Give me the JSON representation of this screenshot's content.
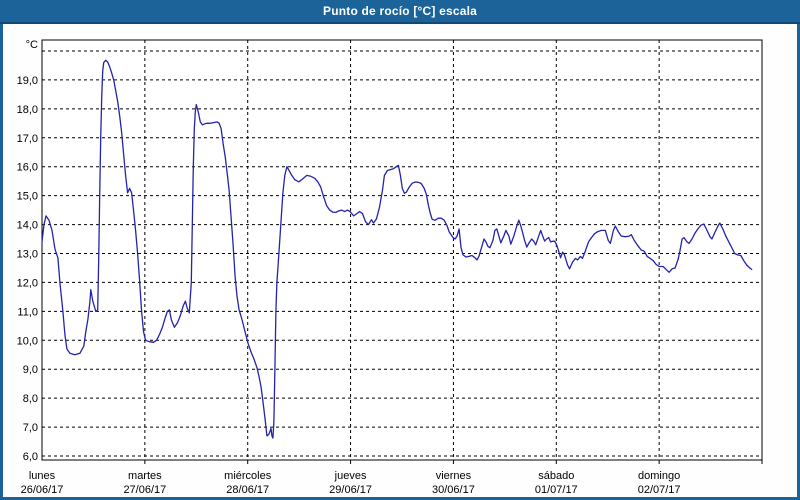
{
  "window": {
    "title": "Punto de rocío [°C] escala"
  },
  "colors": {
    "titlebar": "#1C6399",
    "titlebar_edge": "#0E4A77",
    "plot_background": "#FFFFFF",
    "grid": "#000000",
    "axis": "#000000",
    "text": "#000000",
    "line": "#2323AC"
  },
  "chart_data": {
    "type": "line",
    "title": "Punto de rocío [°C] escala",
    "ylabel": "°C",
    "xlabel": "",
    "ylim": [
      6,
      20
    ],
    "grid": "dashed",
    "legend": "none",
    "y_unit_label": "°C",
    "y_ticks": [
      {
        "v": 19,
        "label": "19,0"
      },
      {
        "v": 18,
        "label": "18,0"
      },
      {
        "v": 17,
        "label": "17,0"
      },
      {
        "v": 16,
        "label": "16,0"
      },
      {
        "v": 15,
        "label": "15,0"
      },
      {
        "v": 14,
        "label": "14,0"
      },
      {
        "v": 13,
        "label": "13,0"
      },
      {
        "v": 12,
        "label": "12,0"
      },
      {
        "v": 11,
        "label": "11,0"
      },
      {
        "v": 10,
        "label": "10,0"
      },
      {
        "v": 9,
        "label": "9,0"
      },
      {
        "v": 8,
        "label": "8,0"
      },
      {
        "v": 7,
        "label": "7,0"
      },
      {
        "v": 6,
        "label": "6,0"
      }
    ],
    "top_gridline_value": 20,
    "x_days": [
      {
        "weekday": "lunes",
        "date": "26/06/17"
      },
      {
        "weekday": "martes",
        "date": "27/06/17"
      },
      {
        "weekday": "miércoles",
        "date": "28/06/17"
      },
      {
        "weekday": "jueves",
        "date": "29/06/17"
      },
      {
        "weekday": "viernes",
        "date": "30/06/17"
      },
      {
        "weekday": "sábado",
        "date": "01/07/17"
      },
      {
        "weekday": "domingo",
        "date": "02/07/17"
      }
    ],
    "x_range_days": [
      0,
      7
    ],
    "series": [
      {
        "name": "Punto de rocío",
        "color": "#2323AC",
        "points": [
          [
            0.0,
            13.4
          ],
          [
            0.019,
            14.0
          ],
          [
            0.039,
            14.3
          ],
          [
            0.068,
            14.15
          ],
          [
            0.097,
            13.8
          ],
          [
            0.126,
            13.15
          ],
          [
            0.155,
            12.85
          ],
          [
            0.174,
            12.0
          ],
          [
            0.203,
            11.0
          ],
          [
            0.223,
            10.2
          ],
          [
            0.242,
            9.7
          ],
          [
            0.271,
            9.55
          ],
          [
            0.319,
            9.5
          ],
          [
            0.368,
            9.55
          ],
          [
            0.406,
            9.8
          ],
          [
            0.426,
            10.3
          ],
          [
            0.445,
            10.7
          ],
          [
            0.465,
            11.3
          ],
          [
            0.474,
            11.75
          ],
          [
            0.494,
            11.35
          ],
          [
            0.523,
            11.0
          ],
          [
            0.542,
            11.05
          ],
          [
            0.552,
            13.0
          ],
          [
            0.561,
            15.0
          ],
          [
            0.571,
            17.0
          ],
          [
            0.581,
            18.5
          ],
          [
            0.59,
            19.3
          ],
          [
            0.6,
            19.6
          ],
          [
            0.619,
            19.68
          ],
          [
            0.639,
            19.62
          ],
          [
            0.658,
            19.45
          ],
          [
            0.677,
            19.25
          ],
          [
            0.697,
            19.0
          ],
          [
            0.716,
            18.65
          ],
          [
            0.736,
            18.25
          ],
          [
            0.755,
            17.75
          ],
          [
            0.774,
            17.2
          ],
          [
            0.794,
            16.4
          ],
          [
            0.813,
            15.7
          ],
          [
            0.832,
            15.1
          ],
          [
            0.852,
            15.25
          ],
          [
            0.871,
            15.1
          ],
          [
            0.89,
            14.5
          ],
          [
            0.91,
            13.8
          ],
          [
            0.929,
            13.0
          ],
          [
            0.948,
            12.1
          ],
          [
            0.968,
            11.0
          ],
          [
            0.987,
            10.3
          ],
          [
            1.007,
            10.0
          ],
          [
            1.045,
            9.95
          ],
          [
            1.084,
            9.93
          ],
          [
            1.113,
            10.0
          ],
          [
            1.142,
            10.2
          ],
          [
            1.171,
            10.45
          ],
          [
            1.2,
            10.8
          ],
          [
            1.219,
            11.0
          ],
          [
            1.239,
            11.05
          ],
          [
            1.258,
            10.7
          ],
          [
            1.287,
            10.45
          ],
          [
            1.316,
            10.6
          ],
          [
            1.345,
            10.85
          ],
          [
            1.374,
            11.2
          ],
          [
            1.394,
            11.35
          ],
          [
            1.413,
            11.1
          ],
          [
            1.432,
            10.95
          ],
          [
            1.452,
            12.0
          ],
          [
            1.461,
            14.0
          ],
          [
            1.471,
            16.0
          ],
          [
            1.481,
            17.3
          ],
          [
            1.49,
            17.9
          ],
          [
            1.5,
            18.15
          ],
          [
            1.519,
            17.9
          ],
          [
            1.539,
            17.55
          ],
          [
            1.558,
            17.45
          ],
          [
            1.597,
            17.5
          ],
          [
            1.636,
            17.5
          ],
          [
            1.674,
            17.53
          ],
          [
            1.703,
            17.55
          ],
          [
            1.723,
            17.5
          ],
          [
            1.742,
            17.3
          ],
          [
            1.761,
            16.8
          ],
          [
            1.781,
            16.35
          ],
          [
            1.8,
            15.8
          ],
          [
            1.819,
            15.2
          ],
          [
            1.839,
            14.2
          ],
          [
            1.858,
            13.3
          ],
          [
            1.877,
            12.2
          ],
          [
            1.897,
            11.5
          ],
          [
            1.916,
            11.05
          ],
          [
            1.945,
            10.7
          ],
          [
            1.974,
            10.3
          ],
          [
            2.003,
            9.9
          ],
          [
            2.032,
            9.6
          ],
          [
            2.061,
            9.35
          ],
          [
            2.09,
            9.05
          ],
          [
            2.11,
            8.75
          ],
          [
            2.129,
            8.4
          ],
          [
            2.148,
            7.9
          ],
          [
            2.168,
            7.3
          ],
          [
            2.187,
            6.7
          ],
          [
            2.206,
            6.75
          ],
          [
            2.226,
            6.95
          ],
          [
            2.235,
            6.7
          ],
          [
            2.245,
            6.62
          ],
          [
            2.255,
            7.2
          ],
          [
            2.264,
            9.0
          ],
          [
            2.274,
            11.0
          ],
          [
            2.284,
            12.0
          ],
          [
            2.303,
            13.0
          ],
          [
            2.322,
            14.0
          ],
          [
            2.342,
            15.1
          ],
          [
            2.361,
            15.7
          ],
          [
            2.381,
            16.0
          ],
          [
            2.4,
            15.88
          ],
          [
            2.429,
            15.7
          ],
          [
            2.458,
            15.55
          ],
          [
            2.497,
            15.48
          ],
          [
            2.535,
            15.58
          ],
          [
            2.574,
            15.7
          ],
          [
            2.613,
            15.67
          ],
          [
            2.652,
            15.6
          ],
          [
            2.681,
            15.48
          ],
          [
            2.71,
            15.3
          ],
          [
            2.739,
            14.95
          ],
          [
            2.768,
            14.65
          ],
          [
            2.797,
            14.5
          ],
          [
            2.826,
            14.43
          ],
          [
            2.855,
            14.42
          ],
          [
            2.884,
            14.47
          ],
          [
            2.913,
            14.5
          ],
          [
            2.942,
            14.45
          ],
          [
            2.971,
            14.5
          ],
          [
            3.0,
            14.43
          ],
          [
            3.029,
            14.3
          ],
          [
            3.058,
            14.37
          ],
          [
            3.087,
            14.45
          ],
          [
            3.116,
            14.38
          ],
          [
            3.145,
            14.1
          ],
          [
            3.174,
            14.0
          ],
          [
            3.203,
            14.17
          ],
          [
            3.223,
            14.05
          ],
          [
            3.252,
            14.2
          ],
          [
            3.281,
            14.6
          ],
          [
            3.31,
            15.2
          ],
          [
            3.329,
            15.7
          ],
          [
            3.358,
            15.87
          ],
          [
            3.387,
            15.9
          ],
          [
            3.416,
            15.93
          ],
          [
            3.445,
            16.0
          ],
          [
            3.465,
            16.05
          ],
          [
            3.484,
            15.7
          ],
          [
            3.503,
            15.25
          ],
          [
            3.523,
            15.08
          ],
          [
            3.542,
            15.12
          ],
          [
            3.571,
            15.3
          ],
          [
            3.6,
            15.43
          ],
          [
            3.629,
            15.47
          ],
          [
            3.658,
            15.46
          ],
          [
            3.687,
            15.42
          ],
          [
            3.716,
            15.25
          ],
          [
            3.736,
            15.05
          ],
          [
            3.755,
            14.7
          ],
          [
            3.774,
            14.4
          ],
          [
            3.794,
            14.18
          ],
          [
            3.823,
            14.15
          ],
          [
            3.852,
            14.22
          ],
          [
            3.881,
            14.22
          ],
          [
            3.91,
            14.15
          ],
          [
            3.939,
            13.95
          ],
          [
            3.958,
            13.75
          ],
          [
            3.977,
            13.65
          ],
          [
            3.997,
            13.55
          ],
          [
            4.016,
            13.5
          ],
          [
            4.035,
            13.6
          ],
          [
            4.055,
            13.85
          ],
          [
            4.074,
            13.2
          ],
          [
            4.093,
            12.95
          ],
          [
            4.122,
            12.88
          ],
          [
            4.151,
            12.9
          ],
          [
            4.181,
            12.93
          ],
          [
            4.21,
            12.85
          ],
          [
            4.229,
            12.78
          ],
          [
            4.248,
            12.9
          ],
          [
            4.277,
            13.25
          ],
          [
            4.297,
            13.5
          ],
          [
            4.316,
            13.4
          ],
          [
            4.335,
            13.25
          ],
          [
            4.355,
            13.2
          ],
          [
            4.384,
            13.45
          ],
          [
            4.403,
            13.8
          ],
          [
            4.422,
            13.85
          ],
          [
            4.442,
            13.6
          ],
          [
            4.461,
            13.37
          ],
          [
            4.49,
            13.6
          ],
          [
            4.51,
            13.8
          ],
          [
            4.539,
            13.6
          ],
          [
            4.558,
            13.32
          ],
          [
            4.587,
            13.6
          ],
          [
            4.616,
            13.95
          ],
          [
            4.636,
            14.15
          ],
          [
            4.655,
            13.95
          ],
          [
            4.674,
            13.7
          ],
          [
            4.694,
            13.43
          ],
          [
            4.713,
            13.22
          ],
          [
            4.732,
            13.35
          ],
          [
            4.761,
            13.5
          ],
          [
            4.781,
            13.42
          ],
          [
            4.8,
            13.3
          ],
          [
            4.829,
            13.6
          ],
          [
            4.848,
            13.8
          ],
          [
            4.868,
            13.6
          ],
          [
            4.887,
            13.43
          ],
          [
            4.906,
            13.5
          ],
          [
            4.926,
            13.55
          ],
          [
            4.945,
            13.4
          ],
          [
            4.964,
            13.42
          ],
          [
            4.984,
            13.43
          ],
          [
            5.003,
            13.3
          ],
          [
            5.022,
            13.1
          ],
          [
            5.042,
            12.85
          ],
          [
            5.061,
            13.05
          ],
          [
            5.08,
            12.95
          ],
          [
            5.11,
            12.6
          ],
          [
            5.129,
            12.47
          ],
          [
            5.158,
            12.7
          ],
          [
            5.187,
            12.83
          ],
          [
            5.206,
            12.78
          ],
          [
            5.235,
            12.9
          ],
          [
            5.255,
            12.83
          ],
          [
            5.284,
            13.1
          ],
          [
            5.313,
            13.4
          ],
          [
            5.342,
            13.55
          ],
          [
            5.371,
            13.68
          ],
          [
            5.4,
            13.75
          ],
          [
            5.439,
            13.8
          ],
          [
            5.477,
            13.8
          ],
          [
            5.506,
            13.45
          ],
          [
            5.526,
            13.35
          ],
          [
            5.555,
            13.8
          ],
          [
            5.574,
            13.95
          ],
          [
            5.603,
            13.75
          ],
          [
            5.632,
            13.6
          ],
          [
            5.671,
            13.58
          ],
          [
            5.71,
            13.6
          ],
          [
            5.729,
            13.65
          ],
          [
            5.758,
            13.45
          ],
          [
            5.787,
            13.3
          ],
          [
            5.826,
            13.12
          ],
          [
            5.855,
            13.08
          ],
          [
            5.884,
            12.9
          ],
          [
            5.913,
            12.83
          ],
          [
            5.942,
            12.75
          ],
          [
            5.971,
            12.62
          ],
          [
            6.0,
            12.55
          ],
          [
            6.039,
            12.55
          ],
          [
            6.068,
            12.45
          ],
          [
            6.097,
            12.35
          ],
          [
            6.126,
            12.47
          ],
          [
            6.155,
            12.5
          ],
          [
            6.184,
            12.8
          ],
          [
            6.203,
            13.1
          ],
          [
            6.223,
            13.5
          ],
          [
            6.242,
            13.55
          ],
          [
            6.271,
            13.4
          ],
          [
            6.29,
            13.35
          ],
          [
            6.319,
            13.5
          ],
          [
            6.348,
            13.7
          ],
          [
            6.377,
            13.85
          ],
          [
            6.406,
            13.98
          ],
          [
            6.435,
            14.02
          ],
          [
            6.465,
            13.8
          ],
          [
            6.494,
            13.58
          ],
          [
            6.513,
            13.5
          ],
          [
            6.542,
            13.73
          ],
          [
            6.571,
            13.95
          ],
          [
            6.59,
            14.05
          ],
          [
            6.619,
            13.85
          ],
          [
            6.648,
            13.6
          ],
          [
            6.677,
            13.4
          ],
          [
            6.706,
            13.2
          ],
          [
            6.735,
            13.0
          ],
          [
            6.764,
            12.95
          ],
          [
            6.794,
            12.93
          ],
          [
            6.823,
            12.75
          ],
          [
            6.852,
            12.6
          ],
          [
            6.881,
            12.5
          ],
          [
            6.9,
            12.45
          ]
        ]
      }
    ]
  }
}
